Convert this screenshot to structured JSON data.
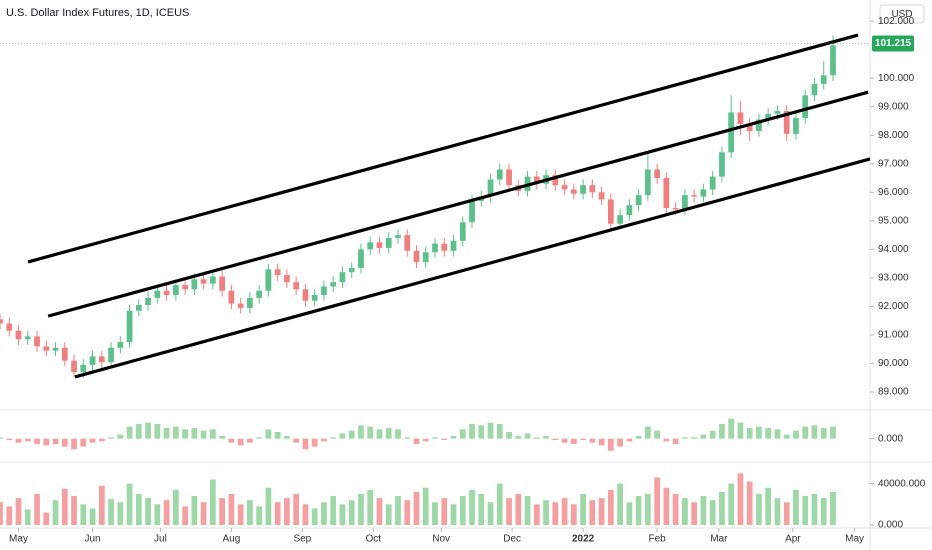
{
  "chart_data": [
    {
      "type": "candlestick",
      "title": "U.S. Dollar Index Futures, 1D, ICEUS",
      "currency": "USD",
      "up_color": "#5cbf8c",
      "down_color": "#ef7f7f",
      "last_price": 101.215,
      "last_price_color": "#26a65b",
      "x": [
        -6,
        -3,
        0,
        3,
        6,
        9,
        12,
        15,
        18,
        21,
        24,
        27,
        30,
        33,
        36,
        39,
        42,
        45,
        48,
        51,
        54,
        57,
        60,
        63,
        66,
        69,
        72,
        75,
        78,
        81,
        84,
        87,
        90,
        93,
        96,
        99,
        102,
        105,
        108,
        111,
        114,
        117,
        120,
        123,
        126,
        129,
        132,
        135,
        138,
        141,
        144,
        147,
        150,
        153,
        156,
        159,
        162,
        165,
        168,
        171,
        174,
        177,
        180,
        183,
        186,
        189,
        192,
        195,
        198,
        201,
        204,
        207,
        210,
        213,
        216,
        219,
        222,
        225,
        228,
        231,
        234,
        237,
        240,
        243,
        246,
        249,
        252,
        255,
        258,
        261,
        264
      ],
      "open": [
        91.55,
        91.4,
        91.15,
        90.85,
        90.95,
        90.6,
        90.45,
        90.55,
        90.1,
        89.7,
        89.95,
        90.25,
        90.05,
        90.55,
        90.75,
        91.85,
        92.05,
        92.3,
        92.55,
        92.4,
        92.75,
        92.6,
        92.95,
        92.8,
        93.05,
        92.55,
        92.1,
        91.95,
        92.3,
        92.55,
        93.3,
        93.1,
        92.85,
        92.6,
        92.2,
        92.4,
        92.7,
        92.85,
        93.2,
        93.35,
        94.0,
        94.25,
        94.05,
        94.4,
        94.5,
        93.95,
        93.55,
        93.9,
        94.2,
        93.95,
        94.3,
        94.95,
        95.7,
        95.85,
        96.45,
        96.8,
        96.25,
        96.05,
        96.55,
        96.3,
        96.6,
        96.25,
        96.1,
        95.95,
        96.25,
        96.0,
        95.75,
        94.9,
        95.2,
        95.55,
        95.9,
        96.8,
        96.5,
        95.45,
        95.4,
        95.9,
        95.85,
        96.1,
        96.55,
        97.4,
        98.8,
        98.4,
        98.15,
        98.55,
        98.75,
        98.85,
        98.05,
        98.6,
        99.4,
        99.8,
        100.1
      ],
      "high": [
        91.75,
        91.6,
        91.35,
        91.15,
        91.15,
        90.8,
        90.75,
        90.75,
        90.3,
        90.15,
        90.45,
        90.45,
        90.75,
        90.95,
        92.05,
        92.25,
        92.5,
        92.75,
        92.75,
        92.95,
        92.95,
        93.15,
        93.15,
        93.25,
        93.25,
        92.75,
        92.3,
        92.5,
        92.75,
        93.5,
        93.5,
        93.3,
        93.05,
        92.8,
        92.6,
        92.9,
        93.05,
        93.4,
        93.55,
        94.2,
        94.45,
        94.45,
        94.6,
        94.7,
        94.7,
        94.15,
        94.1,
        94.4,
        94.4,
        94.5,
        95.15,
        95.9,
        96.05,
        96.65,
        97.0,
        97.0,
        96.45,
        96.75,
        96.75,
        96.8,
        96.8,
        96.45,
        96.3,
        96.45,
        96.45,
        96.2,
        95.95,
        95.4,
        95.75,
        96.1,
        97.4,
        97.0,
        96.7,
        95.65,
        96.1,
        96.1,
        96.3,
        96.75,
        97.6,
        99.4,
        99.2,
        98.6,
        98.75,
        98.95,
        99.05,
        99.05,
        98.8,
        99.6,
        100.0,
        100.6,
        101.5
      ],
      "low": [
        91.2,
        90.95,
        90.65,
        90.65,
        90.4,
        90.25,
        90.25,
        89.9,
        89.5,
        89.5,
        89.75,
        89.85,
        89.85,
        90.35,
        90.55,
        91.65,
        91.85,
        92.1,
        92.2,
        92.2,
        92.4,
        92.4,
        92.6,
        92.6,
        92.35,
        91.9,
        91.75,
        91.75,
        92.1,
        92.35,
        92.9,
        92.65,
        92.4,
        92.0,
        92.0,
        92.2,
        92.5,
        92.65,
        93.0,
        93.15,
        93.8,
        93.85,
        93.85,
        94.2,
        93.75,
        93.35,
        93.35,
        93.7,
        93.75,
        93.75,
        94.1,
        94.75,
        95.5,
        95.65,
        96.25,
        96.05,
        95.85,
        95.85,
        96.1,
        96.1,
        96.05,
        95.9,
        95.75,
        95.75,
        95.8,
        95.55,
        94.7,
        94.7,
        95.0,
        95.35,
        95.7,
        96.3,
        95.25,
        95.2,
        95.2,
        95.65,
        95.65,
        95.9,
        96.35,
        97.2,
        98.0,
        97.8,
        97.95,
        98.35,
        98.55,
        97.8,
        97.85,
        98.4,
        99.2,
        99.6,
        99.9
      ],
      "close": [
        91.4,
        91.15,
        90.85,
        90.95,
        90.6,
        90.45,
        90.55,
        90.1,
        89.7,
        89.95,
        90.25,
        90.05,
        90.55,
        90.75,
        91.85,
        92.05,
        92.3,
        92.55,
        92.4,
        92.75,
        92.6,
        92.95,
        92.8,
        93.05,
        92.55,
        92.1,
        91.95,
        92.3,
        92.55,
        93.3,
        93.1,
        92.85,
        92.6,
        92.2,
        92.4,
        92.7,
        92.85,
        93.2,
        93.35,
        94.0,
        94.25,
        94.05,
        94.4,
        94.5,
        93.95,
        93.55,
        93.9,
        94.2,
        93.95,
        94.3,
        94.95,
        95.7,
        95.85,
        96.45,
        96.8,
        96.25,
        96.05,
        96.55,
        96.3,
        96.6,
        96.25,
        96.1,
        95.95,
        96.25,
        96.0,
        95.75,
        94.9,
        95.2,
        95.55,
        95.9,
        96.8,
        96.5,
        95.45,
        95.4,
        95.9,
        95.85,
        96.1,
        96.55,
        97.4,
        98.8,
        98.4,
        98.15,
        98.55,
        98.75,
        98.85,
        98.05,
        98.6,
        99.4,
        99.8,
        100.1,
        101.15
      ],
      "xlim": [
        -6,
        276
      ],
      "xticks": [
        {
          "value": 0,
          "label": "May"
        },
        {
          "value": 24,
          "label": "Jun"
        },
        {
          "value": 46,
          "label": "Jul"
        },
        {
          "value": 69,
          "label": "Aug"
        },
        {
          "value": 92,
          "label": "Sep"
        },
        {
          "value": 115,
          "label": "Oct"
        },
        {
          "value": 137,
          "label": "Nov"
        },
        {
          "value": 160,
          "label": "Dec"
        },
        {
          "value": 183,
          "label": "2022"
        },
        {
          "value": 207,
          "label": "Feb"
        },
        {
          "value": 227,
          "label": "Mar"
        },
        {
          "value": 251,
          "label": "Apr"
        },
        {
          "value": 271,
          "label": "May"
        }
      ],
      "ylim": [
        88.37,
        102.74
      ],
      "yticks": [
        {
          "value": 102,
          "label": "102.000"
        },
        {
          "value": 100,
          "label": "100.000"
        },
        {
          "value": 99,
          "label": "99.000"
        },
        {
          "value": 98,
          "label": "98.000"
        },
        {
          "value": 97,
          "label": "97.000"
        },
        {
          "value": 96,
          "label": "96.000"
        },
        {
          "value": 95,
          "label": "95.000"
        },
        {
          "value": 94,
          "label": "94.000"
        },
        {
          "value": 93,
          "label": "93.000"
        },
        {
          "value": 92,
          "label": "92.000"
        },
        {
          "value": 91,
          "label": "91.000"
        },
        {
          "value": 90,
          "label": "90.000"
        },
        {
          "value": 89,
          "label": "89.000"
        }
      ],
      "trendlines": [
        {
          "x": [
            3.1,
            272.1
          ],
          "y": [
            93.56,
            101.51
          ]
        },
        {
          "x": [
            9.6,
            275.4
          ],
          "y": [
            91.66,
            99.51
          ]
        },
        {
          "x": [
            18.3,
            276
          ],
          "y": [
            89.53,
            97.17
          ]
        }
      ],
      "trendline_color": "#000000"
    },
    {
      "type": "bar",
      "up_color": "#9ed8a6",
      "down_color": "#f5a0a0",
      "values": [
        0.05,
        -0.05,
        -0.15,
        -0.1,
        -0.2,
        -0.25,
        -0.2,
        -0.3,
        -0.4,
        -0.3,
        -0.15,
        -0.1,
        0.05,
        0.15,
        0.45,
        0.55,
        0.6,
        0.55,
        0.4,
        0.45,
        0.35,
        0.4,
        0.3,
        0.35,
        0.1,
        -0.15,
        -0.25,
        -0.15,
        0.05,
        0.35,
        0.25,
        0.1,
        -0.15,
        -0.4,
        -0.3,
        -0.1,
        0.05,
        0.2,
        0.3,
        0.5,
        0.45,
        0.35,
        0.4,
        0.35,
        0.05,
        -0.2,
        -0.1,
        0.05,
        -0.05,
        0.1,
        0.35,
        0.55,
        0.5,
        0.6,
        0.55,
        0.25,
        0.1,
        0.2,
        0.05,
        0.1,
        -0.05,
        -0.15,
        -0.2,
        -0.05,
        -0.15,
        -0.25,
        -0.45,
        -0.3,
        -0.1,
        0.1,
        0.45,
        0.3,
        -0.1,
        -0.2,
        0.05,
        0.05,
        0.15,
        0.3,
        0.55,
        0.75,
        0.6,
        0.4,
        0.45,
        0.4,
        0.35,
        0.15,
        0.3,
        0.45,
        0.5,
        0.4,
        0.45
      ],
      "ylim": [
        -0.8,
        1.0
      ],
      "yticks": [
        {
          "value": 0,
          "label": "0.000"
        }
      ]
    },
    {
      "type": "bar",
      "up_color": "#9ed8a6",
      "down_color": "#f5a0a0",
      "values": [
        22000,
        18000,
        26000,
        15000,
        30000,
        12000,
        24000,
        35000,
        28000,
        20000,
        16000,
        38000,
        25000,
        22000,
        40000,
        30000,
        26000,
        20000,
        24000,
        34000,
        18000,
        28000,
        22000,
        44000,
        26000,
        30000,
        20000,
        24000,
        18000,
        36000,
        22000,
        26000,
        30000,
        20000,
        16000,
        22000,
        28000,
        20000,
        24000,
        30000,
        34000,
        26000,
        20000,
        28000,
        24000,
        32000,
        36000,
        22000,
        26000,
        20000,
        28000,
        34000,
        30000,
        22000,
        40000,
        26000,
        30000,
        28000,
        20000,
        24000,
        22000,
        26000,
        20000,
        30000,
        24000,
        26000,
        34000,
        40000,
        22000,
        28000,
        30000,
        46000,
        36000,
        30000,
        26000,
        22000,
        28000,
        24000,
        32000,
        40000,
        50000,
        42000,
        30000,
        36000,
        26000,
        22000,
        34000,
        28000,
        30000,
        26000,
        32000
      ],
      "ylim": [
        0,
        58000
      ],
      "yticks": [
        {
          "value": 40000,
          "label": "40000.000"
        },
        {
          "value": 0,
          "label": "0.000"
        }
      ]
    }
  ]
}
